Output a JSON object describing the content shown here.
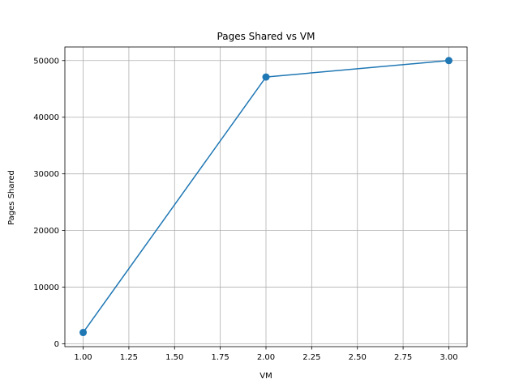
{
  "chart_data": {
    "type": "line",
    "title": "Pages Shared vs VM",
    "xlabel": "VM",
    "ylabel": "Pages Shared",
    "x": [
      1,
      2,
      3
    ],
    "series": [
      {
        "values": [
          2000,
          47100,
          50000
        ]
      }
    ],
    "xlim": [
      0.9,
      3.1
    ],
    "ylim": [
      -500,
      52400
    ],
    "xticks": [
      1.0,
      1.25,
      1.5,
      1.75,
      2.0,
      2.25,
      2.5,
      2.75,
      3.0
    ],
    "xtick_labels": [
      "1.00",
      "1.25",
      "1.50",
      "1.75",
      "2.00",
      "2.25",
      "2.50",
      "2.75",
      "3.00"
    ],
    "yticks": [
      0,
      10000,
      20000,
      30000,
      40000,
      50000
    ],
    "ytick_labels": [
      "0",
      "10000",
      "20000",
      "30000",
      "40000",
      "50000"
    ],
    "grid": true,
    "marker": "circle",
    "colors": {
      "series": "#1f77b4",
      "grid": "#b0b0b0",
      "axis": "#000000"
    }
  }
}
